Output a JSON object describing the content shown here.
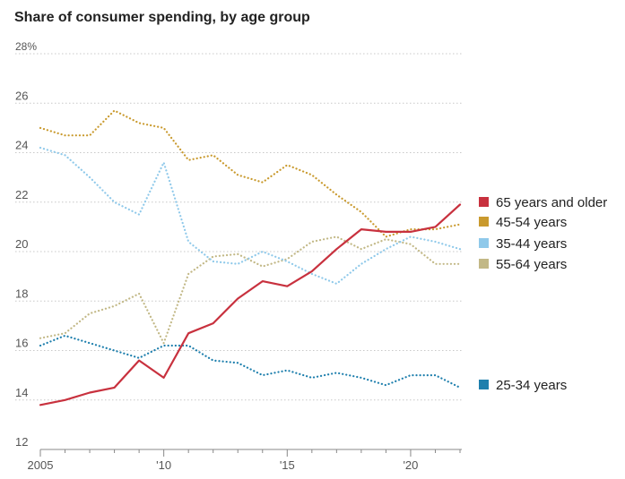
{
  "chart_data": {
    "type": "line",
    "title": "Share of consumer spending, by age group",
    "xlabel": "",
    "ylabel": "",
    "ylim": [
      12,
      28
    ],
    "xlim": [
      2005,
      2022
    ],
    "yticks": [
      12,
      14,
      16,
      18,
      20,
      22,
      24,
      26,
      28
    ],
    "ytick_labels": [
      "12",
      "14",
      "16",
      "18",
      "20",
      "22",
      "24",
      "26",
      "28%"
    ],
    "xticks": [
      2005,
      2010,
      2015,
      2020
    ],
    "xtick_labels": [
      "2005",
      "'10",
      "'15",
      "'20"
    ],
    "x": [
      2005,
      2006,
      2007,
      2008,
      2009,
      2010,
      2011,
      2012,
      2013,
      2014,
      2015,
      2016,
      2017,
      2018,
      2019,
      2020,
      2021,
      2022
    ],
    "series": [
      {
        "name": "65 years and older",
        "color": "#c8313e",
        "style": "solid",
        "values": [
          13.8,
          14.0,
          14.3,
          14.5,
          15.6,
          14.9,
          16.7,
          17.1,
          18.1,
          18.8,
          18.6,
          19.2,
          20.1,
          20.9,
          20.8,
          20.8,
          21.0,
          21.9
        ]
      },
      {
        "name": "45-54 years",
        "color": "#c99a2e",
        "style": "dotted",
        "values": [
          25.0,
          24.7,
          24.7,
          25.7,
          25.2,
          25.0,
          23.7,
          23.9,
          23.1,
          22.8,
          23.5,
          23.1,
          22.3,
          21.6,
          20.6,
          20.9,
          20.9,
          21.1
        ]
      },
      {
        "name": "35-44 years",
        "color": "#8fc9ea",
        "style": "dotted",
        "values": [
          24.2,
          23.9,
          23.0,
          22.0,
          21.5,
          23.6,
          20.4,
          19.6,
          19.5,
          20.0,
          19.6,
          19.1,
          18.7,
          19.5,
          20.1,
          20.6,
          20.4,
          20.1
        ]
      },
      {
        "name": "55-64 years",
        "color": "#c2b886",
        "style": "dotted",
        "values": [
          16.5,
          16.7,
          17.5,
          17.8,
          18.3,
          16.3,
          19.1,
          19.8,
          19.9,
          19.4,
          19.7,
          20.4,
          20.6,
          20.1,
          20.5,
          20.3,
          19.5,
          19.5
        ]
      },
      {
        "name": "25-34 years",
        "color": "#1e7fad",
        "style": "dotted",
        "values": [
          16.2,
          16.6,
          16.3,
          16.0,
          15.7,
          16.2,
          16.2,
          15.6,
          15.5,
          15.0,
          15.2,
          14.9,
          15.1,
          14.9,
          14.6,
          15.0,
          15.0,
          14.5
        ]
      }
    ],
    "legend": [
      "65 years and older",
      "45-54 years",
      "35-44 years",
      "55-64 years",
      "25-34 years"
    ],
    "legend_placement": "right",
    "grid": true
  }
}
